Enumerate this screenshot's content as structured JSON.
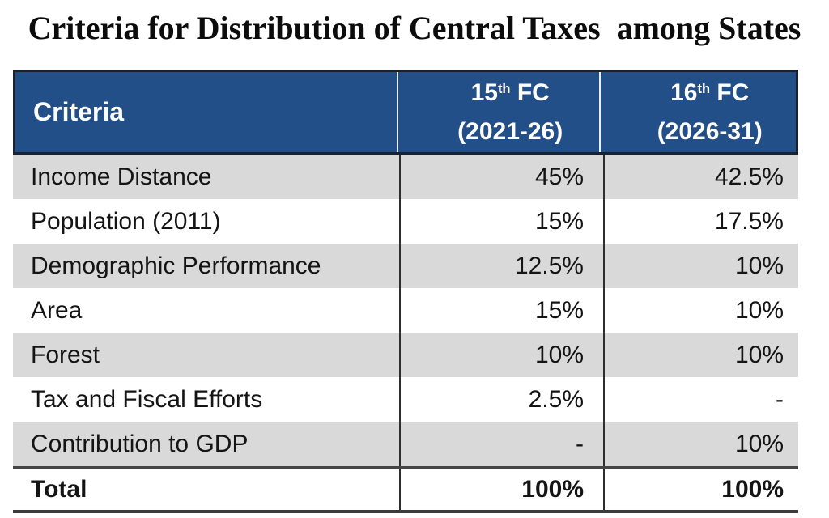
{
  "title": "Criteria for Distribution of Central Taxes  among States",
  "table": {
    "header": {
      "criteria_label": "Criteria",
      "col1": {
        "num": "15",
        "sup": "th",
        "suffix": " FC",
        "period": "(2021-26)"
      },
      "col2": {
        "num": "16",
        "sup": "th",
        "suffix": " FC",
        "period": "(2026-31)"
      }
    },
    "rows": [
      {
        "label": "Income Distance",
        "fc15": "45%",
        "fc16": "42.5%"
      },
      {
        "label": "Population (2011)",
        "fc15": "15%",
        "fc16": "17.5%"
      },
      {
        "label": "Demographic Performance",
        "fc15": "12.5%",
        "fc16": "10%"
      },
      {
        "label": "Area",
        "fc15": "15%",
        "fc16": "10%"
      },
      {
        "label": "Forest",
        "fc15": "10%",
        "fc16": "10%"
      },
      {
        "label": "Tax and Fiscal Efforts",
        "fc15": "2.5%",
        "fc16": "-"
      },
      {
        "label": "Contribution to GDP",
        "fc15": "-",
        "fc16": "10%"
      }
    ],
    "total": {
      "label": "Total",
      "fc15": "100%",
      "fc16": "100%"
    }
  },
  "colors": {
    "header_bg": "#224F87",
    "header_text": "#FFFFFF",
    "alt_row_bg": "#D9D9D9",
    "body_text": "#141414",
    "border_dark": "#2E2E2E"
  },
  "chart_data": {
    "type": "table",
    "title": "Criteria for Distribution of Central Taxes among States",
    "categories": [
      "Income Distance",
      "Population (2011)",
      "Demographic Performance",
      "Area",
      "Forest",
      "Tax and Fiscal Efforts",
      "Contribution to GDP",
      "Total"
    ],
    "series": [
      {
        "name": "15th FC (2021-26)",
        "values": [
          "45%",
          "15%",
          "12.5%",
          "15%",
          "10%",
          "2.5%",
          "-",
          "100%"
        ]
      },
      {
        "name": "16th FC (2026-31)",
        "values": [
          "42.5%",
          "17.5%",
          "10%",
          "10%",
          "10%",
          "-",
          "10%",
          "100%"
        ]
      }
    ]
  }
}
